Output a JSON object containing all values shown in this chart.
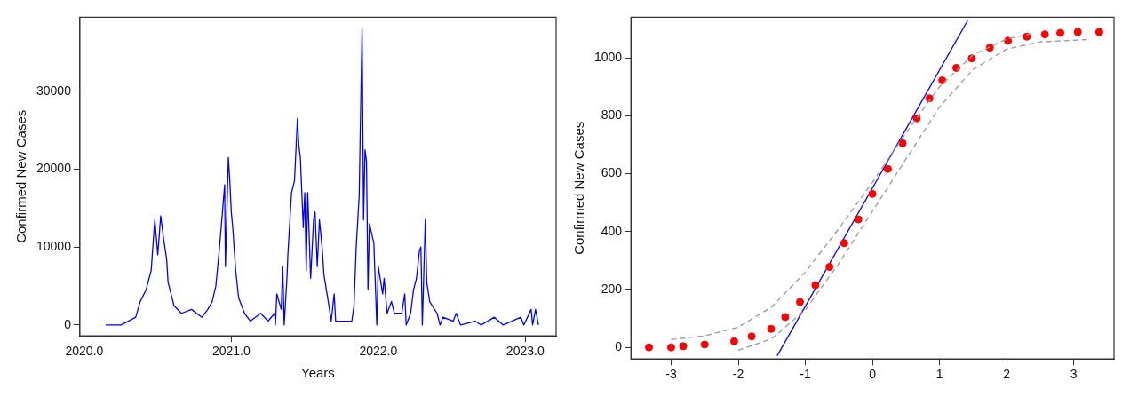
{
  "chart_data": [
    {
      "type": "line",
      "xlabel": "Years",
      "ylabel": "Confirmed New Cases",
      "xlim": [
        2019.97,
        2023.21
      ],
      "xticks": [
        {
          "value": 2020,
          "label": "2020.0"
        },
        {
          "value": 2021,
          "label": "2021.0"
        },
        {
          "value": 2022,
          "label": "2022.0"
        },
        {
          "value": 2023,
          "label": "2023.0"
        }
      ],
      "ylim": [
        -1400,
        39500
      ],
      "yticks": [
        0,
        10000,
        20000,
        30000
      ],
      "grid": false,
      "series": [
        {
          "color": "#0000ff",
          "x": [
            2020.145,
            2020.25,
            2020.35,
            2020.38,
            2020.42,
            2020.455,
            2020.47,
            2020.48,
            2020.5,
            2020.52,
            2020.54,
            2020.56,
            2020.57,
            2020.59,
            2020.61,
            2020.66,
            2020.73,
            2020.8,
            2020.84,
            2020.87,
            2020.895,
            2020.92,
            2020.94,
            2020.955,
            2020.96,
            2020.98,
            2020.99,
            2021.0,
            2021.01,
            2021.03,
            2021.05,
            2021.09,
            2021.13,
            2021.2,
            2021.25,
            2021.295,
            2021.3,
            2021.31,
            2021.34,
            2021.35,
            2021.36,
            2021.38,
            2021.385,
            2021.41,
            2021.43,
            2021.45,
            2021.46,
            2021.47,
            2021.49,
            2021.5,
            2021.51,
            2021.52,
            2021.54,
            2021.56,
            2021.57,
            2021.585,
            2021.6,
            2021.62,
            2021.63,
            2021.66,
            2021.68,
            2021.7,
            2021.71,
            2021.78,
            2021.82,
            2021.835,
            2021.85,
            2021.87,
            2021.88,
            2021.89,
            2021.9,
            2021.91,
            2021.92,
            2021.93,
            2021.94,
            2021.97,
            2021.99,
            2022.0,
            2022.03,
            2022.04,
            2022.06,
            2022.09,
            2022.11,
            2022.16,
            2022.18,
            2022.19,
            2022.22,
            2022.24,
            2022.26,
            2022.28,
            2022.29,
            2022.3,
            2022.32,
            2022.33,
            2022.35,
            2022.4,
            2022.42,
            2022.44,
            2022.51,
            2022.53,
            2022.56,
            2022.66,
            2022.7,
            2022.79,
            2022.85,
            2022.97,
            2022.99,
            2023.04,
            2023.05,
            2023.07,
            2023.09
          ],
          "values": [
            0,
            0,
            1000,
            3000,
            4500,
            7000,
            11000,
            13500,
            9000,
            14000,
            11000,
            8500,
            5500,
            4000,
            2500,
            1500,
            2000,
            1000,
            2000,
            3000,
            5000,
            10000,
            14500,
            18000,
            7500,
            21500,
            18500,
            14500,
            12500,
            7000,
            3500,
            1500,
            500,
            1500,
            500,
            1500,
            0,
            4000,
            2000,
            7500,
            0,
            6500,
            9000,
            17000,
            18500,
            26500,
            23000,
            21500,
            12500,
            17000,
            7000,
            17000,
            6000,
            13500,
            14500,
            7500,
            13500,
            9500,
            6500,
            3000,
            500,
            4000,
            500,
            500,
            500,
            2500,
            10000,
            16500,
            27500,
            38000,
            13500,
            22500,
            21000,
            4500,
            13000,
            10500,
            0,
            7500,
            4000,
            6000,
            1500,
            3000,
            1500,
            1500,
            4000,
            0,
            1500,
            4500,
            6000,
            9500,
            10000,
            0,
            13500,
            5500,
            3000,
            1500,
            0,
            1000,
            500,
            1500,
            0,
            500,
            0,
            1000,
            0,
            1000,
            0,
            2000,
            0,
            2000,
            0
          ]
        }
      ]
    },
    {
      "type": "scatter",
      "ylabel": "Confirmed New Cases",
      "xlim": [
        -3.6,
        3.6
      ],
      "xticks": [
        -3,
        -2,
        -1,
        0,
        1,
        2,
        3
      ],
      "ylim": [
        -40,
        1140
      ],
      "yticks": [
        0,
        200,
        400,
        600,
        800,
        1000
      ],
      "grid": false,
      "series": [
        {
          "type": "line",
          "color": "#999999",
          "line_style": "dashed",
          "x": [
            -3.0,
            -2.5,
            -2.0,
            -1.5,
            -1.0,
            -0.5,
            0.0,
            0.5,
            1.0,
            1.5,
            2.0,
            2.4
          ],
          "values": [
            27,
            40,
            70,
            140,
            260,
            410,
            570,
            740,
            900,
            1010,
            1065,
            1085
          ]
        },
        {
          "type": "line",
          "color": "#999999",
          "line_style": "dashed",
          "x": [
            -2.0,
            -1.5,
            -1.0,
            -0.5,
            0.0,
            0.5,
            1.0,
            1.5,
            2.0,
            2.5,
            3.2
          ],
          "values": [
            -10,
            30,
            130,
            290,
            470,
            650,
            830,
            960,
            1030,
            1055,
            1063
          ]
        },
        {
          "color": "#ff0000",
          "marker": "circle",
          "x": [
            -3.33,
            -3.0,
            -2.82,
            -2.5,
            -2.06,
            -1.8,
            -1.51,
            -1.3,
            -1.08,
            -0.85,
            -0.64,
            -0.42,
            -0.21,
            0.0,
            0.23,
            0.45,
            0.66,
            0.85,
            1.04,
            1.25,
            1.48,
            1.75,
            2.02,
            2.3,
            2.57,
            2.8,
            3.06,
            3.38
          ],
          "values": [
            0,
            0,
            4,
            10,
            21,
            38,
            64,
            105,
            157,
            215,
            278,
            360,
            442,
            530,
            616,
            705,
            791,
            860,
            922,
            965,
            998,
            1035,
            1059,
            1073,
            1081,
            1086,
            1089,
            1089
          ]
        },
        {
          "type": "line",
          "color": "#0000ff",
          "x": [
            -1.42,
            1.42
          ],
          "values": [
            -29,
            1129
          ]
        }
      ]
    }
  ]
}
